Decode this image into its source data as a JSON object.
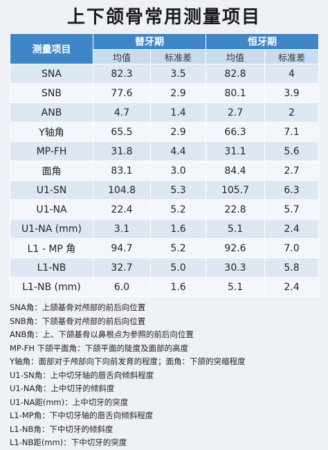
{
  "title": "上下颌骨常用测量项目",
  "table": {
    "item_header": "测量项目",
    "groups": [
      "替牙期",
      "恒牙期"
    ],
    "sub_headers": [
      "均值",
      "标准差",
      "均值",
      "标准差"
    ],
    "rows": [
      {
        "name": "SNA",
        "cells": [
          "82.3",
          "3.5",
          "82.8",
          "4"
        ]
      },
      {
        "name": "SNB",
        "cells": [
          "77.6",
          "2.9",
          "80.1",
          "3.9"
        ]
      },
      {
        "name": "ANB",
        "cells": [
          "4.7",
          "1.4",
          "2.7",
          "2"
        ]
      },
      {
        "name": "Y轴角",
        "cells": [
          "65.5",
          "2.9",
          "66.3",
          "7.1"
        ]
      },
      {
        "name": "MP-FH",
        "cells": [
          "31.8",
          "4.4",
          "31.1",
          "5.6"
        ]
      },
      {
        "name": "面角",
        "cells": [
          "83.1",
          "3.0",
          "84.4",
          "2.7"
        ]
      },
      {
        "name": "U1-SN",
        "cells": [
          "104.8",
          "5.3",
          "105.7",
          "6.3"
        ]
      },
      {
        "name": "U1-NA",
        "cells": [
          "22.4",
          "5.2",
          "22.8",
          "5.7"
        ]
      },
      {
        "name": "U1-NA (mm)",
        "cells": [
          "3.1",
          "1.6",
          "5.1",
          "2.4"
        ]
      },
      {
        "name": "L1 - MP 角",
        "cells": [
          "94.7",
          "5.2",
          "92.6",
          "7.0"
        ]
      },
      {
        "name": "L1-NB",
        "cells": [
          "32.7",
          "5.0",
          "30.3",
          "5.8"
        ]
      },
      {
        "name": "L1-NB (mm)",
        "cells": [
          "6.0",
          "1.6",
          "5.1",
          "2.4"
        ]
      }
    ]
  },
  "notes": [
    "SNA角：上颌基骨对颅部的前后向位置",
    "SNB角：下颌基骨对颅部的前后向位置",
    "ANB角：上、下颌基骨以鼻根点为参照的前后向位置",
    "MP-FH 下颌平面角：下颌平面的陡度及面部的高度",
    "Y轴角：面部对于颅部向下向前发育的程度；面角：下颌的突缩程度",
    "U1-SN角：上中切牙轴的唇舌向倾斜程度",
    "U1-NA角：上中切牙的倾斜度",
    "U1-NA距(mm)：上中切牙的突度",
    "L1-MP角：下中切牙轴的唇舌向倾斜程度",
    "L1-NB角：下中切牙的倾斜度",
    "L1-NB距(mm)：下中切牙的突度"
  ]
}
